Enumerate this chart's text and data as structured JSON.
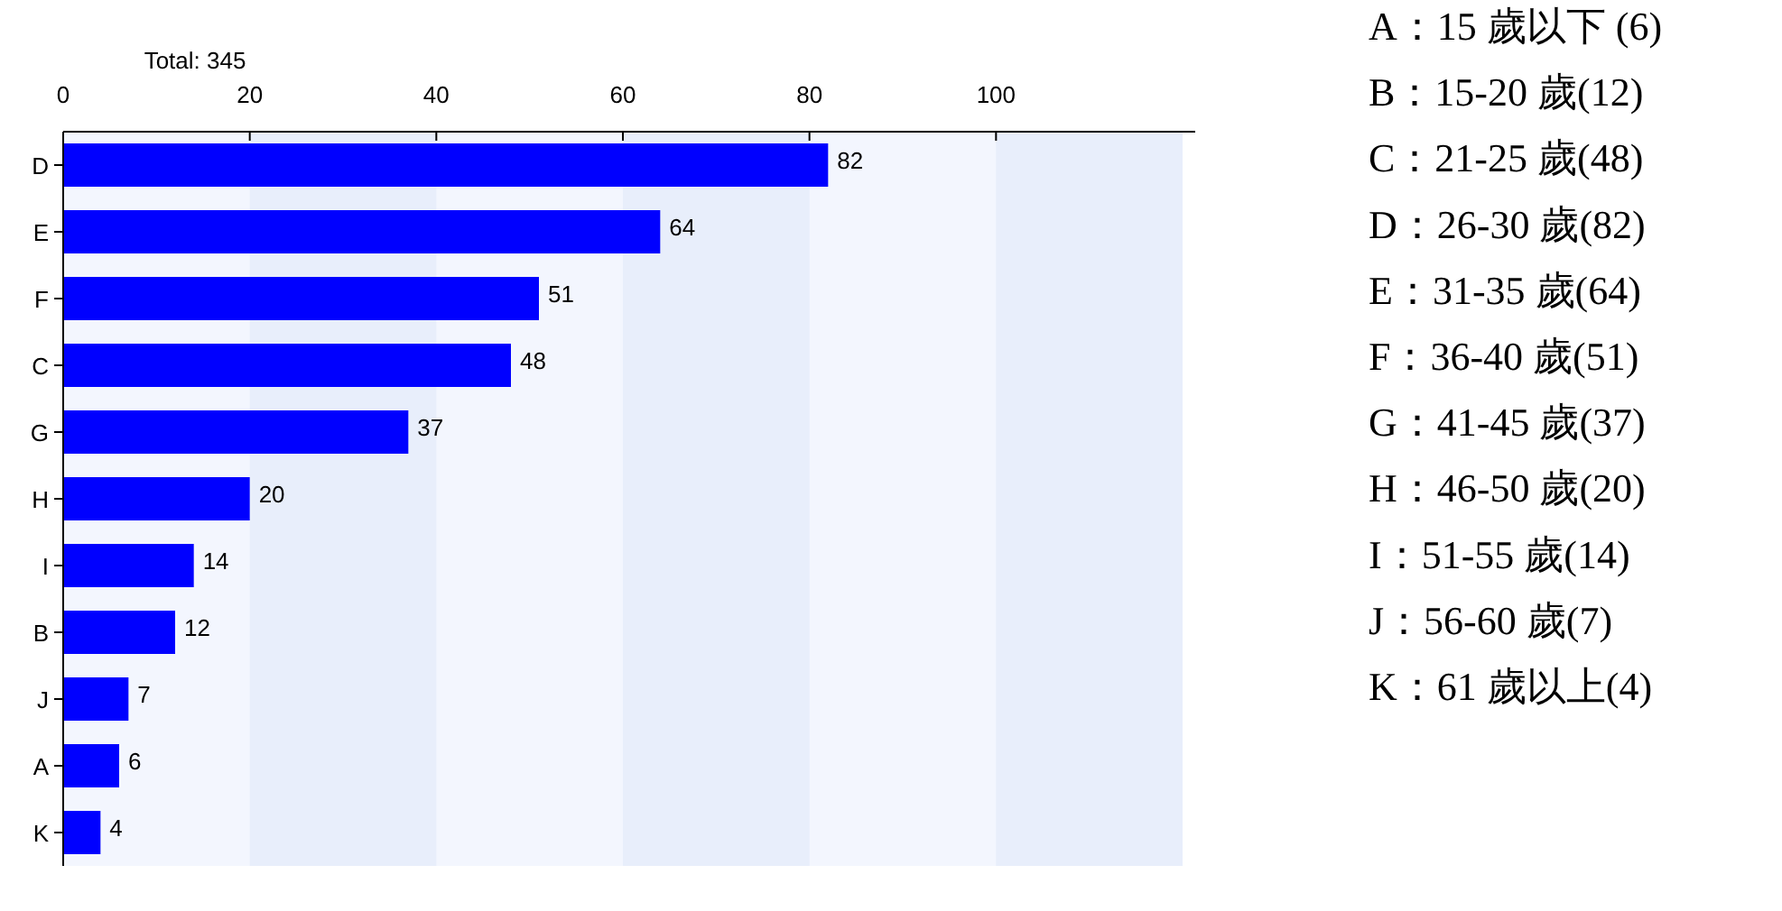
{
  "chart_data": {
    "type": "bar",
    "orientation": "horizontal",
    "categories": [
      "D",
      "E",
      "F",
      "C",
      "G",
      "H",
      "I",
      "B",
      "J",
      "A",
      "K"
    ],
    "values": [
      82,
      64,
      51,
      48,
      37,
      20,
      14,
      12,
      7,
      6,
      4
    ],
    "color": "#0000ff",
    "xlim": [
      0,
      120
    ],
    "xticks": [
      0,
      20,
      40,
      60,
      80,
      100
    ],
    "bands": [
      {
        "axis": "x",
        "from": 20,
        "to": 40,
        "color": "#e8eefb"
      },
      {
        "axis": "x",
        "from": 60,
        "to": 80,
        "color": "#e8eefb"
      },
      {
        "axis": "x",
        "from": 100,
        "to": 120,
        "color": "#e8eefb"
      }
    ],
    "data_labels": true,
    "annotations": [
      "Total: 345",
      "A：15 歲以下 (6)",
      "B：15-20 歲(12)",
      "C：21-25 歲(48)",
      "D：26-30 歲(82)",
      "E：31-35 歲(64)",
      "F：36-40 歲(51)",
      "G：41-45 歲(37)",
      "H：46-50 歲(20)",
      "I：51-55 歲(14)",
      "J：56-60 歲(7)",
      "K：61 歲以上(4)"
    ]
  }
}
